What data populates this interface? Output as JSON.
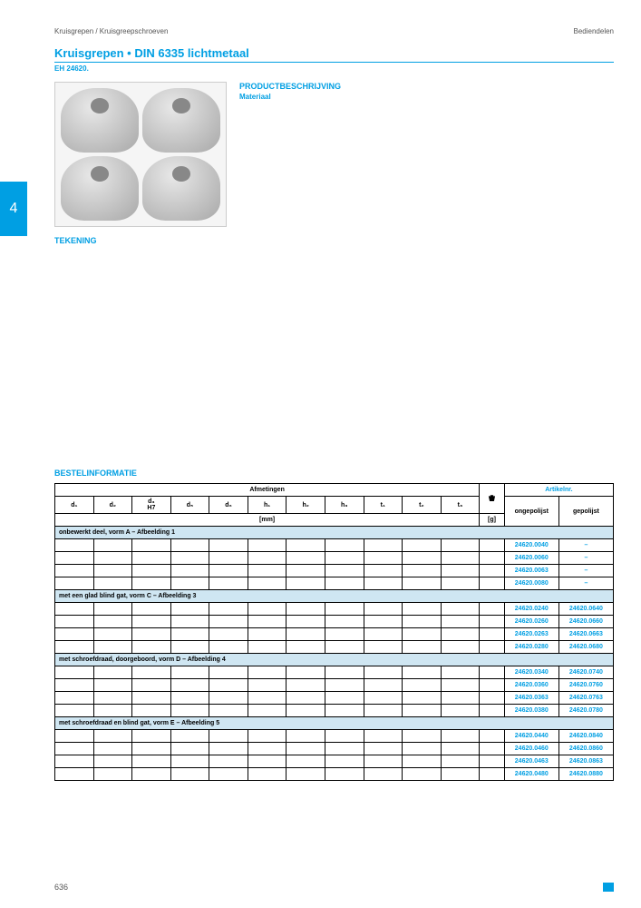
{
  "header": {
    "left": "Kruisgrepen / Kruisgreepschroeven",
    "right": "Bediendelen"
  },
  "title": "Kruisgrepen • DIN 6335 lichtmetaal",
  "subtitle": "EH 24620.",
  "tabNumber": "4",
  "desc": {
    "heading": "PRODUCTBESCHRIJVING",
    "sub": "Materiaal"
  },
  "tekening": "TEKENING",
  "bestel": "BESTELINFORMATIE",
  "tableHead": {
    "afmetingen": "Afmetingen",
    "artikelnr": "Artikelnr.",
    "cols": [
      "d₁",
      "d₂",
      "d₃\nH7",
      "d₅",
      "d₆",
      "h₁",
      "h₂",
      "h₃",
      "t₁",
      "t₂",
      "t₃"
    ],
    "mm": "[mm]",
    "g": "[g]",
    "ongepolijst": "ongepolijst",
    "gepolijst": "gepolijst"
  },
  "sections": [
    {
      "title": "onbewerkt deel, vorm A – Afbeelding 1",
      "rows": [
        {
          "a1": "24620.0040",
          "a2": "–"
        },
        {
          "a1": "24620.0060",
          "a2": "–"
        },
        {
          "a1": "24620.0063",
          "a2": "–"
        },
        {
          "a1": "24620.0080",
          "a2": "–"
        }
      ]
    },
    {
      "title": "met een glad blind gat, vorm C – Afbeelding 3",
      "rows": [
        {
          "a1": "24620.0240",
          "a2": "24620.0640"
        },
        {
          "a1": "24620.0260",
          "a2": "24620.0660"
        },
        {
          "a1": "24620.0263",
          "a2": "24620.0663"
        },
        {
          "a1": "24620.0280",
          "a2": "24620.0680"
        }
      ]
    },
    {
      "title": "met schroefdraad, doorgeboord, vorm D – Afbeelding 4",
      "rows": [
        {
          "a1": "24620.0340",
          "a2": "24620.0740"
        },
        {
          "a1": "24620.0360",
          "a2": "24620.0760"
        },
        {
          "a1": "24620.0363",
          "a2": "24620.0763"
        },
        {
          "a1": "24620.0380",
          "a2": "24620.0780"
        }
      ]
    },
    {
      "title": "met schroefdraad en blind gat, vorm E – Afbeelding 5",
      "rows": [
        {
          "a1": "24620.0440",
          "a2": "24620.0840"
        },
        {
          "a1": "24620.0460",
          "a2": "24620.0860"
        },
        {
          "a1": "24620.0463",
          "a2": "24620.0863"
        },
        {
          "a1": "24620.0480",
          "a2": "24620.0880"
        }
      ]
    }
  ],
  "pageNumber": "636"
}
